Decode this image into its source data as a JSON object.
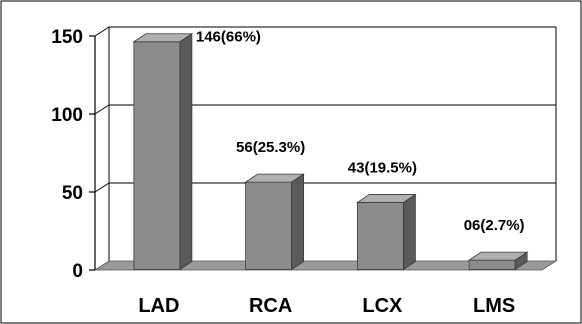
{
  "chart_data": {
    "type": "bar",
    "style": "3d-column",
    "categories": [
      "LAD",
      "RCA",
      "LCX",
      "LMS"
    ],
    "values": [
      146,
      56,
      43,
      6
    ],
    "data_labels": [
      "146(66%)",
      "56(25.3%)",
      "43(19.5%)",
      "06(2.7%)"
    ],
    "title": "",
    "xlabel": "",
    "ylabel": "",
    "ylim": [
      0,
      150
    ],
    "yticks": [
      0,
      50,
      100,
      150
    ],
    "ytick_labels": [
      "0",
      "50",
      "100",
      "150"
    ],
    "grid": true,
    "legend": "none",
    "colors": {
      "bar_front": "#8c8c8c",
      "bar_side": "#5a5a5a",
      "bar_top": "#b0b0b0",
      "floor": "#9a9a9a",
      "gridline": "#000000"
    }
  }
}
